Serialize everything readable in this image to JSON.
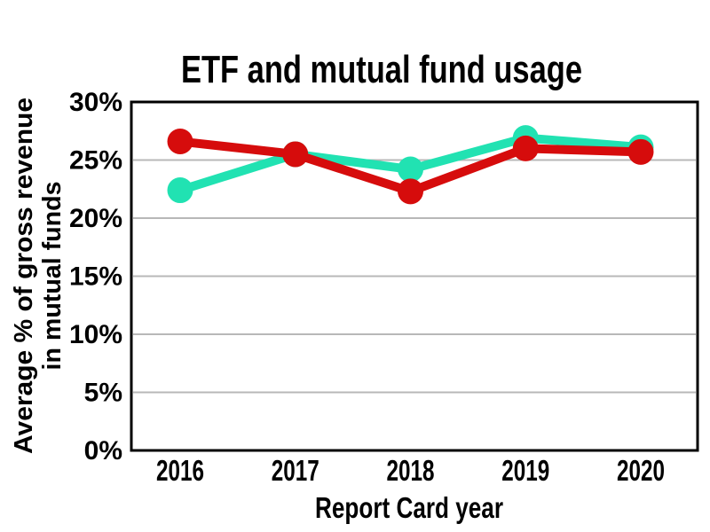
{
  "chart_data": {
    "type": "line",
    "title": "ETF and mutual fund usage",
    "xlabel": "Report Card year",
    "ylabel": "Average % of gross revenue in mutual funds",
    "ylabel_lines": [
      "Average % of gross revenue",
      "in mutual funds"
    ],
    "x": [
      "2016",
      "2017",
      "2018",
      "2019",
      "2020"
    ],
    "series": [
      {
        "name": "teal-series",
        "color": "#21e2b2",
        "values": [
          22.4,
          25.5,
          24.2,
          26.9,
          26.1
        ]
      },
      {
        "name": "red-series",
        "color": "#d60c0c",
        "values": [
          26.6,
          25.5,
          22.3,
          26.0,
          25.7
        ]
      }
    ],
    "ylim": [
      0,
      30
    ],
    "yticks": [
      0,
      5,
      10,
      15,
      20,
      25,
      30
    ],
    "ytick_suffix": "%",
    "grid": "horizontal",
    "legend": "none"
  },
  "colors": {
    "red": "#d60c0c",
    "teal": "#21e2b2",
    "gridline": "#b8b8b8",
    "axis_box": "#000000",
    "background": "#ffffff"
  }
}
